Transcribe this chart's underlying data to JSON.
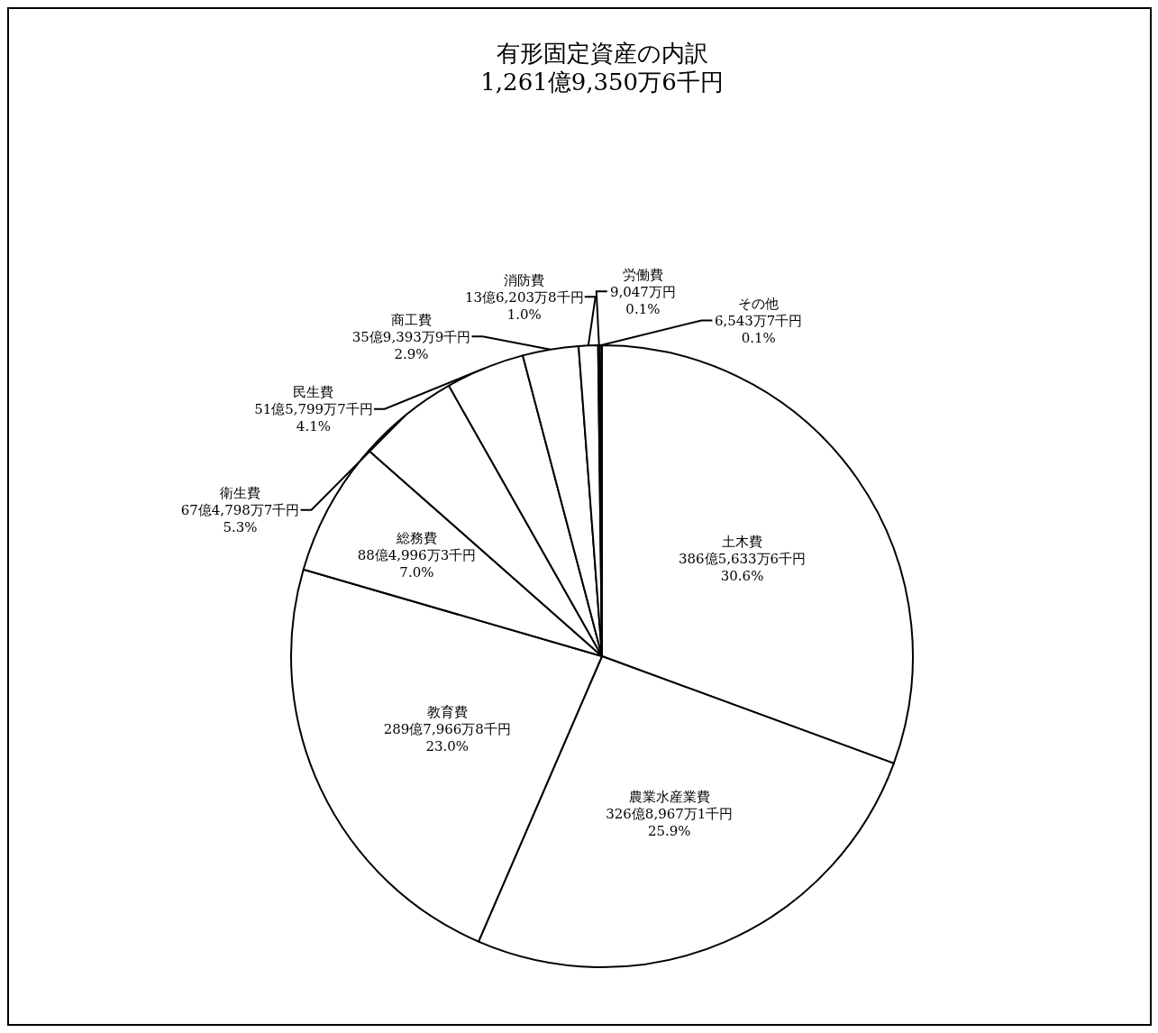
{
  "chart_data": {
    "type": "pie",
    "title": "有形固定資産の内訳",
    "subtitle": "1,261億9,350万6千円",
    "categories": [
      "土木費",
      "農業水産業費",
      "教育費",
      "総務費",
      "衛生費",
      "民生費",
      "商工費",
      "消防費",
      "労働費",
      "その他"
    ],
    "values": [
      30.6,
      25.9,
      23.0,
      7.0,
      5.3,
      4.1,
      2.9,
      1.0,
      0.1,
      0.1
    ],
    "colors": [
      "#ffffff",
      "#ffffff",
      "#ffffff",
      "#ffffff",
      "#ffffff",
      "#ffffff",
      "#ffffff",
      "#ffffff",
      "#ffffff",
      "#ffffff"
    ],
    "value_labels": [
      "386億5,633万6千円\n30.6%",
      "326億8,967万1千円\n25.9%",
      "289億7,966万8千円\n23.0%",
      "88億4,996万3千円\n7.0%",
      "67億4,798万7千円\n5.3%",
      "51億5,799万7千円\n4.1%",
      "35億9,393万9千円\n2.9%",
      "13億6,203万8千円\n1.0%",
      "9,047万円\n0.1%",
      "6,543万7千円\n0.1%"
    ],
    "legend": false
  }
}
